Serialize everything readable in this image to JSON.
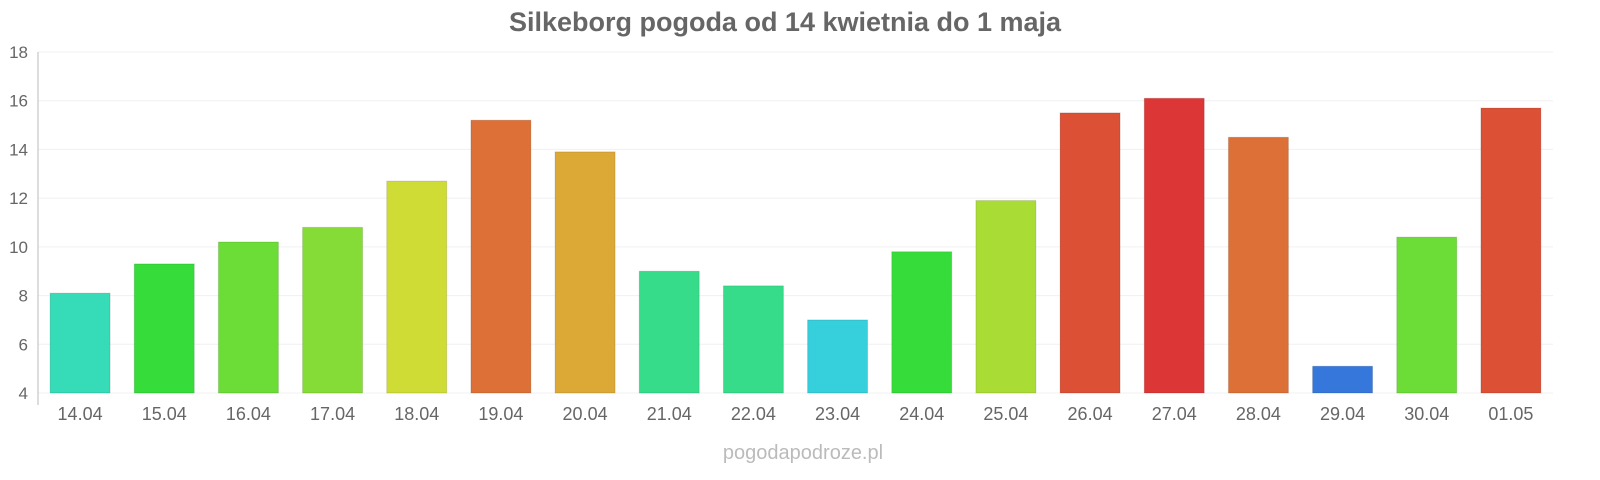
{
  "chart_data": {
    "type": "bar",
    "title": "Silkeborg pogoda od 14 kwietnia do 1 maja",
    "xlabel": "",
    "ylabel": "",
    "ylim": [
      4,
      18
    ],
    "yticks": [
      "4",
      "6",
      "8",
      "10",
      "12",
      "14",
      "16",
      "18"
    ],
    "grid": true,
    "categories": [
      "14.04",
      "15.04",
      "16.04",
      "17.04",
      "18.04",
      "19.04",
      "20.04",
      "21.04",
      "22.04",
      "23.04",
      "24.04",
      "25.04",
      "26.04",
      "27.04",
      "28.04",
      "29.04",
      "30.04",
      "01.05"
    ],
    "values": [
      8.1,
      9.3,
      10.2,
      10.8,
      12.7,
      15.2,
      13.9,
      9.0,
      8.4,
      7.0,
      9.8,
      11.9,
      15.5,
      16.1,
      14.5,
      5.1,
      10.4,
      15.7
    ],
    "colors": [
      "#36dcb8",
      "#36dc3a",
      "#6cdc36",
      "#86dc36",
      "#cfdc36",
      "#dc7036",
      "#dca836",
      "#36dc8a",
      "#36dc8a",
      "#36cfdc",
      "#36dc3a",
      "#aadc36",
      "#dc5036",
      "#dc3636",
      "#dc7036",
      "#3677dc",
      "#6cdc36",
      "#dc5036"
    ]
  },
  "watermark": "pogodapodroze.pl"
}
